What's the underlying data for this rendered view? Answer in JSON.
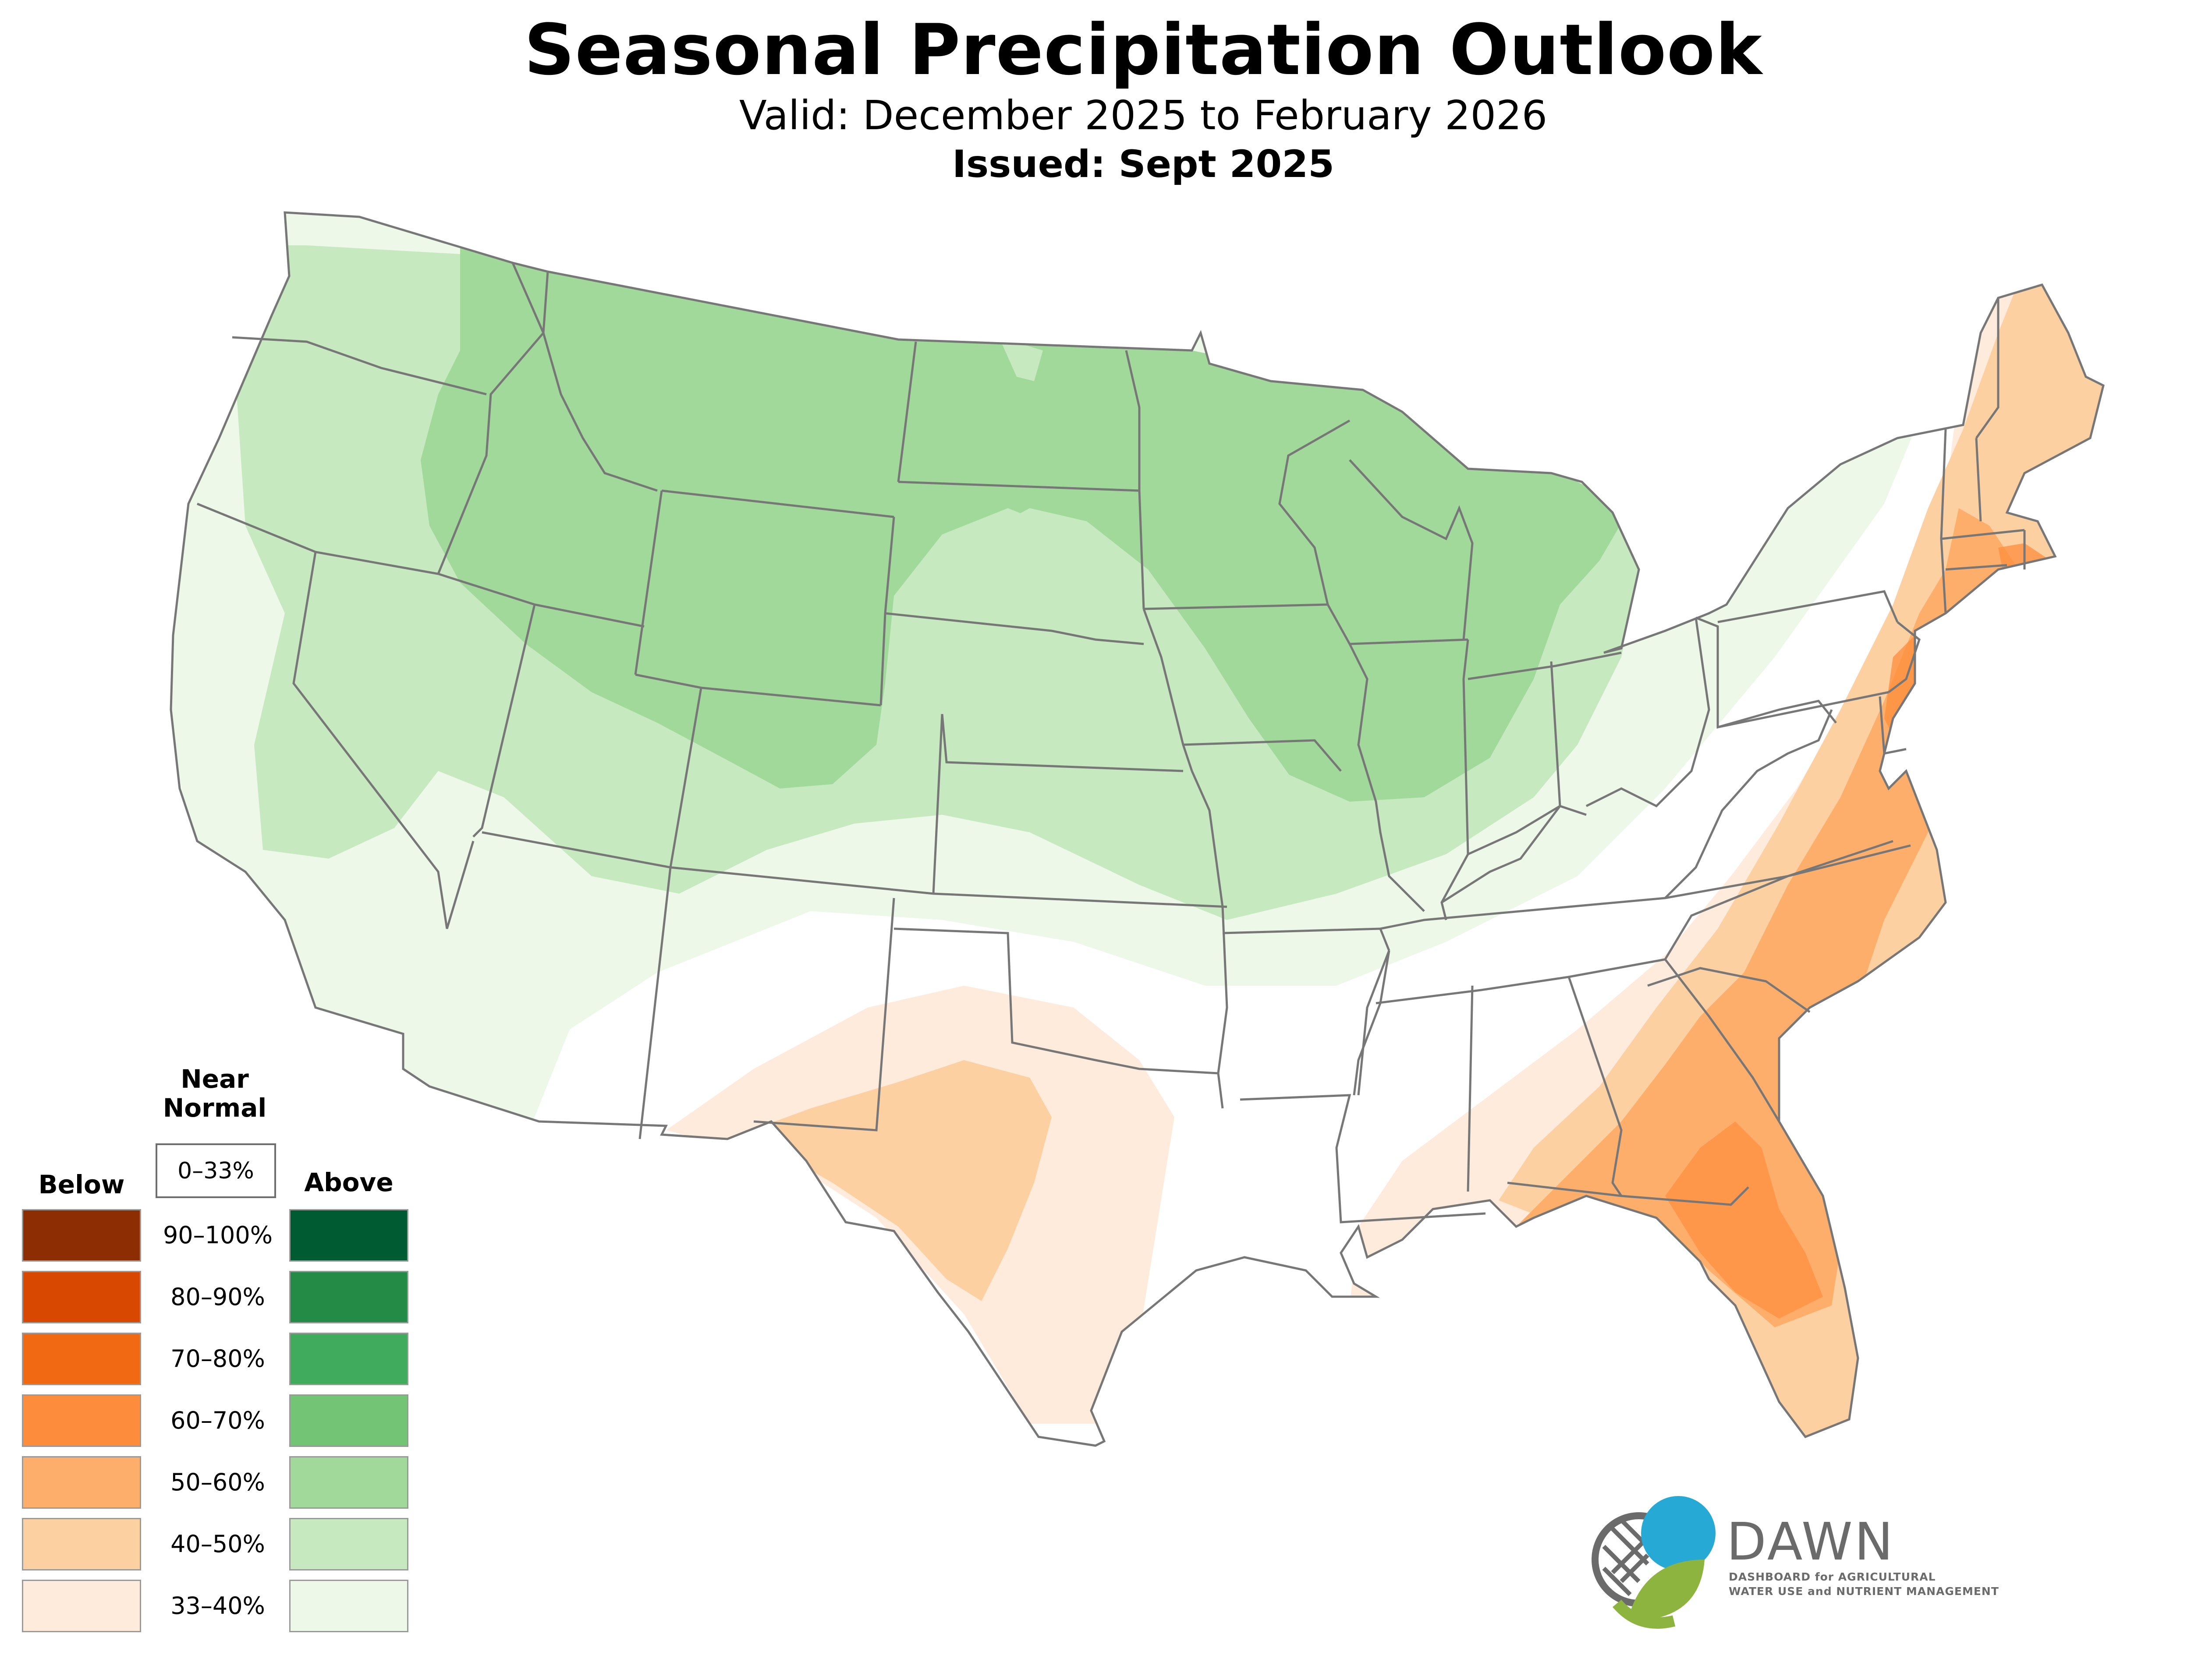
{
  "title": "Seasonal Precipitation Outlook",
  "subtitle": "Valid: December 2025 to February 2026",
  "issued": "Issued: Sept 2025",
  "legend": {
    "near_normal_heading_line1": "Near",
    "near_normal_heading_line2": "Normal",
    "near_normal_range": "0–33%",
    "below_heading": "Below",
    "above_heading": "Above",
    "ranges": [
      "90–100%",
      "80–90%",
      "70–80%",
      "60–70%",
      "50–60%",
      "40–50%",
      "33–40%"
    ],
    "below_colors": [
      "#8c2d04",
      "#d94801",
      "#f16913",
      "#fd8d3c",
      "#fdae6b",
      "#fdd0a2",
      "#feebdc"
    ],
    "above_colors": [
      "#005a32",
      "#238b45",
      "#41ab5d",
      "#74c476",
      "#a1d99b",
      "#c7e9c0",
      "#edf8e9"
    ]
  },
  "logo": {
    "name": "DAWN",
    "tagline_line1": "DASHBOARD for AGRICULTURAL",
    "tagline_line2": "WATER USE and NUTRIENT MANAGEMENT",
    "blue": "#27a9d6",
    "green": "#8cb43f",
    "gray": "#6b6b6b"
  },
  "map_colors": {
    "green_33_40": "#edf8e9",
    "green_40_50": "#c7e9c0",
    "green_50_60": "#a1d99b",
    "orange_33_40": "#feebdc",
    "orange_40_50": "#fdd0a2",
    "orange_50_60": "#fdae6b",
    "orange_60_70": "#fd8d3c",
    "state_lines": "#777777"
  }
}
